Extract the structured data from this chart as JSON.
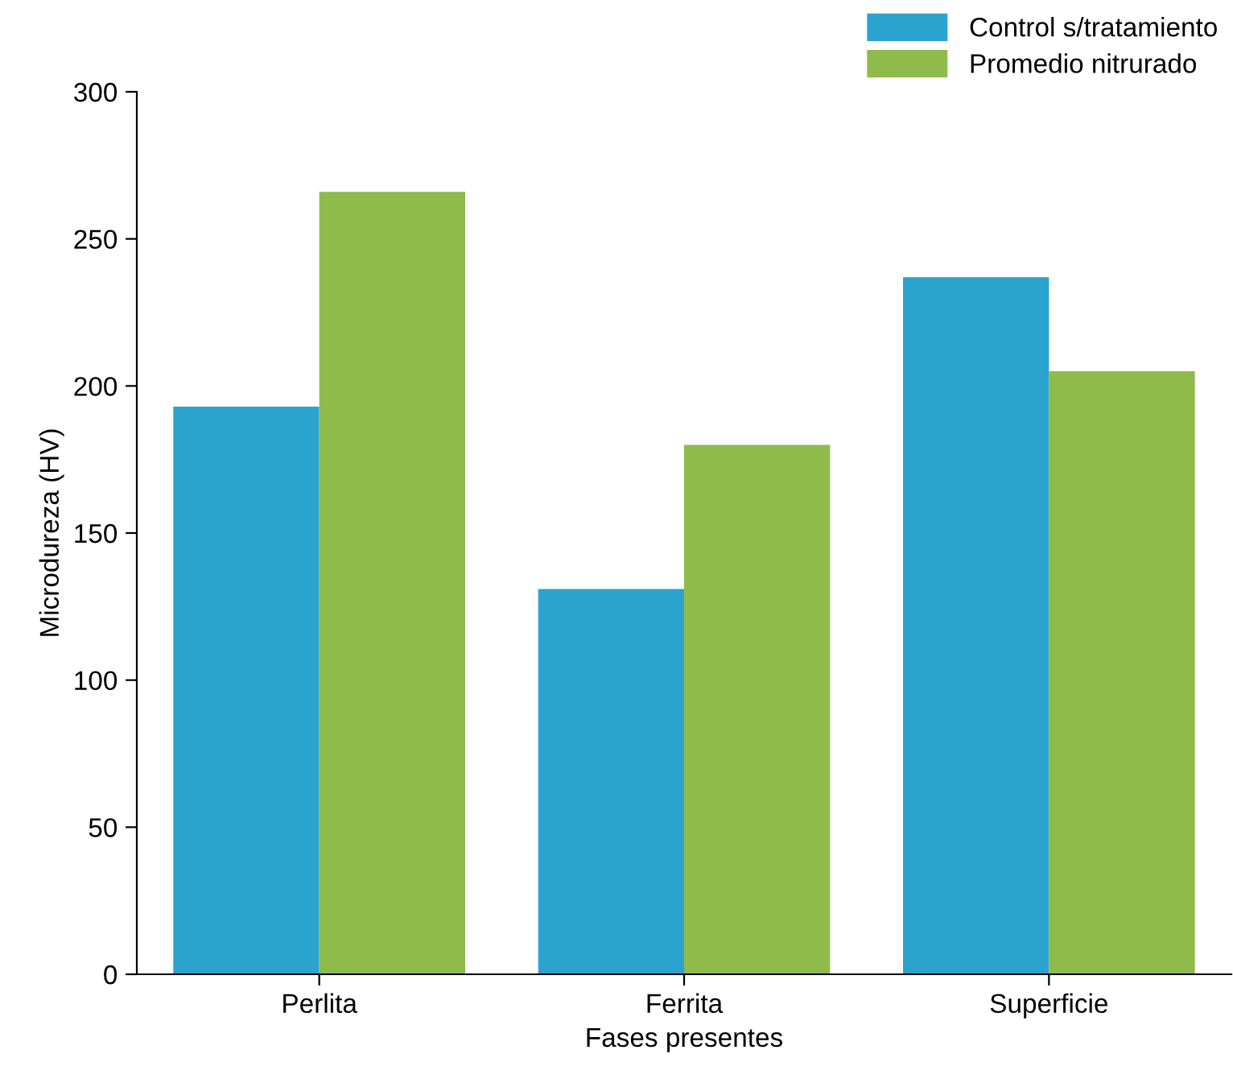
{
  "chart_data": {
    "type": "bar",
    "xlabel": "Fases presentes",
    "ylabel": "Microdureza (HV)",
    "categories": [
      "Perlita",
      "Ferrita",
      "Superficie"
    ],
    "series": [
      {
        "name": "Control s/tratamiento",
        "color": "#2ba3cf",
        "values": [
          193,
          131,
          237
        ]
      },
      {
        "name": "Promedio nitrurado",
        "color": "#8fbb4b",
        "values": [
          266,
          180,
          205
        ]
      }
    ],
    "ylim": [
      0,
      300
    ],
    "yticks": [
      0,
      50,
      100,
      150,
      200,
      250,
      300
    ],
    "grid": false,
    "legend": "top right"
  }
}
